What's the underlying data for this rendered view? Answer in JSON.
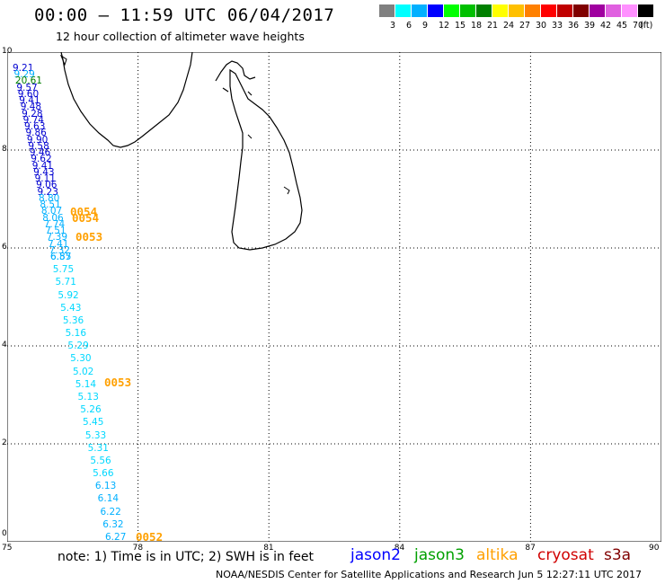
{
  "title": "00:00 – 11:59 UTC 06/04/2017",
  "subtitle": "12 hour collection of altimeter wave heights",
  "legend": {
    "unit": "(ft)",
    "colors": [
      "#808080",
      "#00ffff",
      "#00b0ff",
      "#0000ff",
      "#00ff00",
      "#00c000",
      "#008000",
      "#ffff00",
      "#ffc000",
      "#ff8000",
      "#ff0000",
      "#c00000",
      "#800000",
      "#a000a0",
      "#e060e0",
      "#ff90ff",
      "#000000"
    ],
    "levels": [
      "3",
      "6",
      "9",
      "12",
      "15",
      "18",
      "21",
      "24",
      "27",
      "30",
      "33",
      "36",
      "39",
      "42",
      "45",
      "70"
    ]
  },
  "map": {
    "lon_range": [
      75,
      90
    ],
    "lat_range": [
      0,
      10
    ],
    "x_ticks": [
      "75",
      "78",
      "81",
      "84",
      "87",
      "90"
    ],
    "y_ticks": [
      "10",
      "8",
      "6",
      "4",
      "2",
      "0"
    ]
  },
  "tracks": {
    "jason2_colors": {
      "dark": "#0000d0",
      "cyan": "#00d8ff",
      "green": "#008000"
    },
    "labels": [
      {
        "text": "9.21",
        "c": "#0000d0"
      },
      {
        "text": "9.29",
        "c": "#00b0ff"
      },
      {
        "text": "20.61",
        "c": "#008000"
      },
      {
        "text": "9.57",
        "c": "#0000d0"
      },
      {
        "text": "9.60",
        "c": "#0000d0"
      },
      {
        "text": "9.41",
        "c": "#0000d0"
      },
      {
        "text": "9.48",
        "c": "#0000d0"
      },
      {
        "text": "9.28",
        "c": "#0000d0"
      },
      {
        "text": "9.74",
        "c": "#0000d0"
      },
      {
        "text": "9.63",
        "c": "#0000d0"
      },
      {
        "text": "9.86",
        "c": "#0000d0"
      },
      {
        "text": "9.90",
        "c": "#0000d0"
      },
      {
        "text": "9.58",
        "c": "#0000d0"
      },
      {
        "text": "9.46",
        "c": "#0000d0"
      },
      {
        "text": "9.62",
        "c": "#0000d0"
      },
      {
        "text": "9.41",
        "c": "#0000d0"
      },
      {
        "text": "9.43",
        "c": "#0000d0"
      },
      {
        "text": "9.11",
        "c": "#0000d0"
      },
      {
        "text": "9.06",
        "c": "#0000d0"
      },
      {
        "text": "9.23",
        "c": "#0000d0"
      },
      {
        "text": "8.80",
        "c": "#00b0ff"
      },
      {
        "text": "8.51",
        "c": "#00b0ff"
      },
      {
        "text": "8.07",
        "c": "#00b0ff"
      },
      {
        "text": "8.06",
        "c": "#00b0ff"
      },
      {
        "text": "7.74",
        "c": "#00b0ff"
      },
      {
        "text": "7.51",
        "c": "#00b0ff"
      },
      {
        "text": "7.39",
        "c": "#00b0ff"
      },
      {
        "text": "7.41",
        "c": "#00b0ff"
      },
      {
        "text": "7.32",
        "c": "#00b0ff"
      },
      {
        "text": "6.87",
        "c": "#00b0ff"
      },
      {
        "text": "6.55",
        "c": "#00b0ff"
      },
      {
        "text": "5.75",
        "c": "#00d8ff"
      },
      {
        "text": "5.71",
        "c": "#00d8ff"
      },
      {
        "text": "5.92",
        "c": "#00d8ff"
      },
      {
        "text": "5.43",
        "c": "#00d8ff"
      },
      {
        "text": "5.36",
        "c": "#00d8ff"
      },
      {
        "text": "5.16",
        "c": "#00d8ff"
      },
      {
        "text": "5.29",
        "c": "#00d8ff"
      },
      {
        "text": "5.30",
        "c": "#00d8ff"
      },
      {
        "text": "5.02",
        "c": "#00d8ff"
      },
      {
        "text": "5.14",
        "c": "#00d8ff"
      },
      {
        "text": "5.13",
        "c": "#00d8ff"
      },
      {
        "text": "5.26",
        "c": "#00d8ff"
      },
      {
        "text": "5.45",
        "c": "#00d8ff"
      },
      {
        "text": "5.33",
        "c": "#00d8ff"
      },
      {
        "text": "5.31",
        "c": "#00d8ff"
      },
      {
        "text": "5.56",
        "c": "#00d8ff"
      },
      {
        "text": "5.66",
        "c": "#00d8ff"
      },
      {
        "text": "6.13",
        "c": "#00b0ff"
      },
      {
        "text": "6.14",
        "c": "#00b0ff"
      },
      {
        "text": "6.22",
        "c": "#00b0ff"
      },
      {
        "text": "6.32",
        "c": "#00b0ff"
      },
      {
        "text": "6.27",
        "c": "#00b0ff"
      }
    ],
    "time_labels": [
      "0054",
      "0054",
      "0053",
      "0053",
      "0052"
    ]
  },
  "note": "note: 1) Time is in UTC; 2) SWH is in feet",
  "satellites": [
    {
      "name": "jason2",
      "color": "#0000ff"
    },
    {
      "name": "jason3",
      "color": "#00a000"
    },
    {
      "name": "altika",
      "color": "#ffa000"
    },
    {
      "name": "cryosat",
      "color": "#d00000"
    },
    {
      "name": "s3a",
      "color": "#800000"
    }
  ],
  "credit": "NOAA/NESDIS Center for Satellite Applications and Research    Jun  5 12:27:11 UTC 2017"
}
